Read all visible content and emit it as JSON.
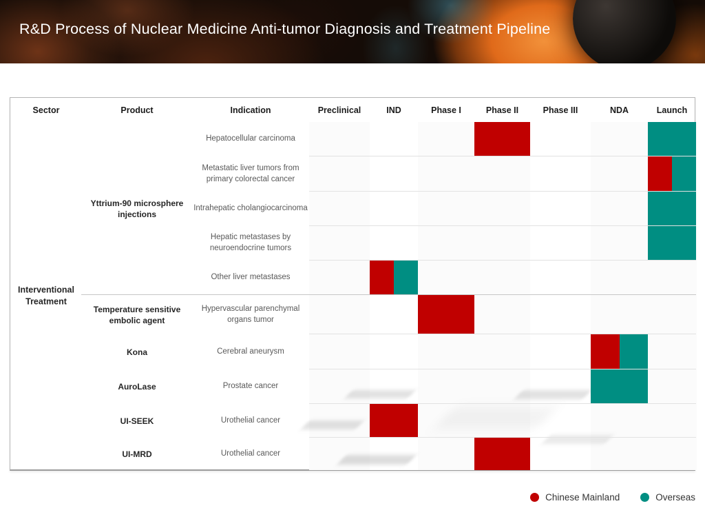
{
  "banner": {
    "title": "R&D Process of Nuclear Medicine Anti-tumor Diagnosis and Treatment Pipeline"
  },
  "columns": [
    "Sector",
    "Product",
    "Indication",
    "Preclinical",
    "IND",
    "Phase I",
    "Phase II",
    "Phase III",
    "NDA",
    "Launch"
  ],
  "colors": {
    "mainland": "#c00000",
    "overseas": "#008e82"
  },
  "legend": [
    {
      "key": "mainland",
      "label": "Chinese Mainland"
    },
    {
      "key": "overseas",
      "label": "Overseas"
    }
  ],
  "chart_data": {
    "type": "table",
    "title": "R&D Process of Nuclear Medicine Anti-tumor Diagnosis and Treatment Pipeline",
    "sector": "Interventional Treatment",
    "stages": [
      "Preclinical",
      "IND",
      "Phase I",
      "Phase II",
      "Phase III",
      "NDA",
      "Launch"
    ],
    "legend_position": "bottom-right",
    "products": [
      {
        "name": "Yttrium-90 microsphere injections",
        "row_start": 0,
        "row_end": 4
      },
      {
        "name": "Temperature sensitive embolic agent",
        "row_start": 5,
        "row_end": 5
      },
      {
        "name": "Kona",
        "row_start": 6,
        "row_end": 6
      },
      {
        "name": "AuroLase",
        "row_start": 7,
        "row_end": 7
      },
      {
        "name": "UI-SEEK",
        "row_start": 8,
        "row_end": 8
      },
      {
        "name": "UI-MRD",
        "row_start": 9,
        "row_end": 9
      }
    ],
    "rows": [
      {
        "indication": "Hepatocellular carcinoma",
        "bars": [
          {
            "stage": "Phase II",
            "region": "mainland",
            "start": 0,
            "end": 1
          },
          {
            "stage": "Launch",
            "region": "overseas",
            "start": 0,
            "end": 1
          }
        ]
      },
      {
        "indication": "Metastatic liver tumors from primary colorectal cancer",
        "bars": [
          {
            "stage": "Launch",
            "region": "mainland",
            "start": 0,
            "end": 0.5
          },
          {
            "stage": "Launch",
            "region": "overseas",
            "start": 0.5,
            "end": 1
          }
        ]
      },
      {
        "indication": "Intrahepatic cholangiocarcinoma",
        "bars": [
          {
            "stage": "Launch",
            "region": "overseas",
            "start": 0,
            "end": 1
          }
        ]
      },
      {
        "indication": "Hepatic metastases by neuroendocrine tumors",
        "bars": [
          {
            "stage": "Launch",
            "region": "overseas",
            "start": 0,
            "end": 1
          }
        ]
      },
      {
        "indication": "Other liver metastases",
        "bars": [
          {
            "stage": "IND",
            "region": "mainland",
            "start": 0,
            "end": 0.5
          },
          {
            "stage": "IND",
            "region": "overseas",
            "start": 0.5,
            "end": 1
          }
        ]
      },
      {
        "indication": "Hypervascular parenchymal organs tumor",
        "bars": [
          {
            "stage": "Phase I",
            "region": "mainland",
            "start": 0,
            "end": 1
          }
        ]
      },
      {
        "indication": "Cerebral aneurysm",
        "bars": [
          {
            "stage": "NDA",
            "region": "mainland",
            "start": 0,
            "end": 0.5
          },
          {
            "stage": "NDA",
            "region": "overseas",
            "start": 0.5,
            "end": 1
          }
        ]
      },
      {
        "indication": "Prostate cancer",
        "bars": [
          {
            "stage": "NDA",
            "region": "overseas",
            "start": 0,
            "end": 1
          }
        ]
      },
      {
        "indication": "Urothelial cancer",
        "bars": [
          {
            "stage": "IND",
            "region": "mainland",
            "start": 0,
            "end": 1
          }
        ]
      },
      {
        "indication": "Urothelial cancer",
        "bars": [
          {
            "stage": "Phase II",
            "region": "mainland",
            "start": 0,
            "end": 1
          }
        ]
      }
    ]
  }
}
